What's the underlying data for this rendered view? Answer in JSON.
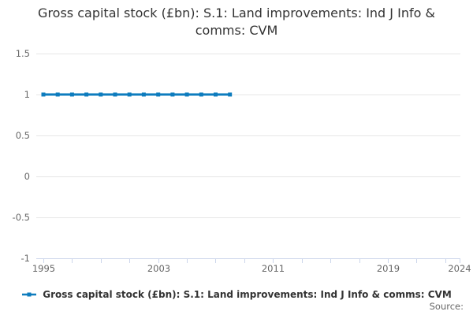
{
  "title": "Gross capital stock (£bn): S.1: Land improvements: Ind J Info & comms: CVM",
  "source_label": "Source:",
  "legend": {
    "series_label": "Gross capital stock (£bn): S.1: Land improvements: Ind J Info & comms: CVM",
    "symbol": "line-with-square-marker"
  },
  "colors": {
    "series": "#0e7cbe",
    "gridline": "#e6e6e6",
    "axis": "#ccd6eb",
    "axis_label": "#666666",
    "title_text": "#333333",
    "legend_text": "#333333",
    "source_text": "#666666",
    "background": "#ffffff"
  },
  "chart_data": {
    "type": "line",
    "title": "Gross capital stock (£bn): S.1: Land improvements: Ind J Info & comms: CVM",
    "x": [
      1995,
      1996,
      1997,
      1998,
      1999,
      2000,
      2001,
      2002,
      2003,
      2004,
      2005,
      2006,
      2007,
      2008
    ],
    "series": [
      {
        "name": "Gross capital stock (£bn): S.1: Land improvements: Ind J Info & comms: CVM",
        "values": [
          1,
          1,
          1,
          1,
          1,
          1,
          1,
          1,
          1,
          1,
          1,
          1,
          1,
          1
        ]
      }
    ],
    "xlabel": "",
    "ylabel": "",
    "marker": "square",
    "grid": true,
    "legend_position": "bottom",
    "x_axis": {
      "min": 1994.5,
      "max": 2024,
      "ticks": [
        1995,
        1997,
        1999,
        2001,
        2003,
        2005,
        2007,
        2009,
        2011,
        2013,
        2015,
        2017,
        2019,
        2021,
        2023,
        2024
      ],
      "labeled_ticks": [
        1995,
        2003,
        2011,
        2019,
        2024
      ]
    },
    "y_axis": {
      "min": -1,
      "max": 1.5,
      "tick_interval": 0.5,
      "ticks": [
        1.5,
        1,
        0.5,
        0,
        -0.5,
        -1
      ],
      "tick_labels": [
        "1.5",
        "1",
        "0.5",
        "0",
        "-0.5",
        "-1"
      ]
    }
  }
}
